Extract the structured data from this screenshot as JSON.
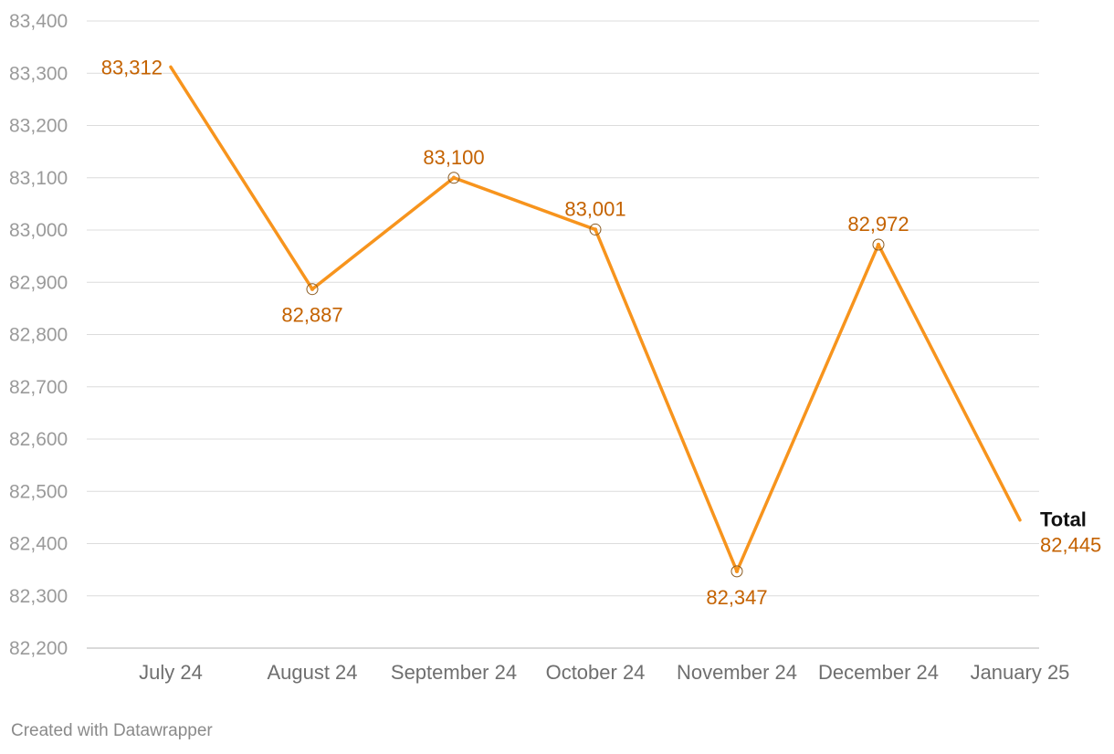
{
  "chart_data": {
    "type": "line",
    "categories": [
      "July 24",
      "August 24",
      "September 24",
      "October 24",
      "November 24",
      "December 24",
      "January 25"
    ],
    "series": [
      {
        "name": "Total",
        "values": [
          83312,
          82887,
          83100,
          83001,
          82347,
          82972,
          82445
        ],
        "color": "#f7941d"
      }
    ],
    "labels": [
      "83,312",
      "82,887",
      "83,100",
      "83,001",
      "82,347",
      "82,972",
      "82,445"
    ],
    "y_ticks": [
      82200,
      82300,
      82400,
      82500,
      82600,
      82700,
      82800,
      82900,
      83000,
      83100,
      83200,
      83300,
      83400
    ],
    "y_tick_labels": [
      "82,200",
      "82,300",
      "82,400",
      "82,500",
      "82,600",
      "82,700",
      "82,800",
      "82,900",
      "83,000",
      "83,100",
      "83,200",
      "83,300",
      "83,400"
    ],
    "ylim": [
      82200,
      83400
    ],
    "grid": true,
    "legend": "none",
    "label_color": "#c46200",
    "markers_circled": [
      false,
      true,
      true,
      true,
      true,
      true,
      false
    ]
  },
  "footer": "Created with Datawrapper"
}
